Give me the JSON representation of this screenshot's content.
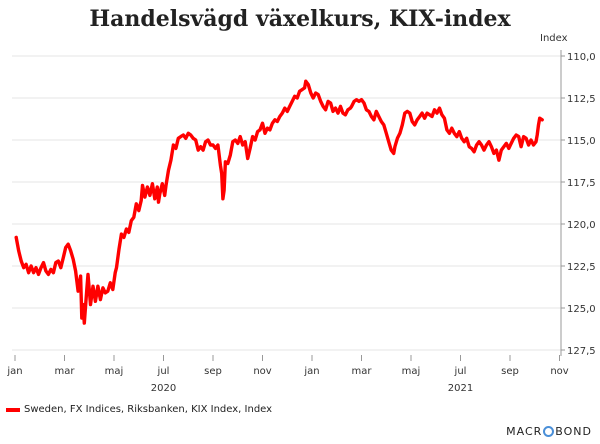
{
  "title": "Handelsvägd växelkurs, KIX-index",
  "legend": {
    "label": "Sweden, FX Indices, Riksbanken, KIX Index, Index",
    "color": "#ff0000"
  },
  "brand": {
    "prefix": "MACR",
    "suffix": "BOND",
    "mark_color": "#4a8fd8"
  },
  "chart_data": {
    "type": "line",
    "title": "Handelsvägd växelkurs, KIX-index",
    "ylabel": "Index",
    "ylim": [
      127.5,
      110.0
    ],
    "y_inverted": true,
    "y_ticks": [
      "110,0",
      "112,5",
      "115,0",
      "117,5",
      "120,0",
      "122,5",
      "125,0",
      "127,5"
    ],
    "y_tick_values": [
      110.0,
      112.5,
      115.0,
      117.5,
      120.0,
      122.5,
      125.0,
      127.5
    ],
    "x_range_months": [
      0,
      21.3
    ],
    "x_ticks": [
      {
        "label": "jan",
        "month": 0
      },
      {
        "label": "mar",
        "month": 2
      },
      {
        "label": "maj",
        "month": 4
      },
      {
        "label": "jul",
        "month": 6
      },
      {
        "label": "sep",
        "month": 8
      },
      {
        "label": "nov",
        "month": 10
      },
      {
        "label": "jan",
        "month": 12
      },
      {
        "label": "mar",
        "month": 14
      },
      {
        "label": "maj",
        "month": 16
      },
      {
        "label": "jul",
        "month": 18
      },
      {
        "label": "sep",
        "month": 20
      },
      {
        "label": "nov",
        "month": 22
      }
    ],
    "year_labels": [
      {
        "label": "2020",
        "month": 6
      },
      {
        "label": "2021",
        "month": 18
      }
    ],
    "series": [
      {
        "name": "Sweden, FX Indices, Riksbanken, KIX Index, Index",
        "color": "#ff0000",
        "points": [
          [
            0.05,
            120.8
          ],
          [
            0.15,
            121.6
          ],
          [
            0.25,
            122.2
          ],
          [
            0.35,
            122.6
          ],
          [
            0.45,
            122.4
          ],
          [
            0.55,
            122.9
          ],
          [
            0.65,
            122.5
          ],
          [
            0.75,
            122.9
          ],
          [
            0.85,
            122.6
          ],
          [
            0.95,
            123.0
          ],
          [
            1.05,
            122.6
          ],
          [
            1.15,
            122.3
          ],
          [
            1.25,
            122.8
          ],
          [
            1.35,
            123.0
          ],
          [
            1.45,
            122.7
          ],
          [
            1.55,
            122.9
          ],
          [
            1.65,
            122.3
          ],
          [
            1.75,
            122.2
          ],
          [
            1.85,
            122.6
          ],
          [
            1.95,
            122.0
          ],
          [
            2.05,
            121.4
          ],
          [
            2.15,
            121.2
          ],
          [
            2.25,
            121.6
          ],
          [
            2.35,
            122.1
          ],
          [
            2.45,
            122.8
          ],
          [
            2.55,
            124.0
          ],
          [
            2.65,
            123.1
          ],
          [
            2.7,
            125.6
          ],
          [
            2.75,
            124.8
          ],
          [
            2.8,
            125.9
          ],
          [
            2.9,
            123.9
          ],
          [
            2.95,
            123.0
          ],
          [
            3.05,
            124.8
          ],
          [
            3.15,
            123.7
          ],
          [
            3.25,
            124.6
          ],
          [
            3.35,
            123.7
          ],
          [
            3.45,
            124.5
          ],
          [
            3.55,
            123.8
          ],
          [
            3.65,
            124.1
          ],
          [
            3.75,
            124.0
          ],
          [
            3.85,
            123.5
          ],
          [
            3.95,
            123.9
          ],
          [
            4.05,
            122.9
          ],
          [
            4.1,
            122.6
          ],
          [
            4.2,
            121.5
          ],
          [
            4.3,
            120.6
          ],
          [
            4.4,
            120.8
          ],
          [
            4.5,
            120.3
          ],
          [
            4.6,
            120.5
          ],
          [
            4.7,
            119.8
          ],
          [
            4.8,
            119.6
          ],
          [
            4.9,
            118.8
          ],
          [
            5.0,
            119.2
          ],
          [
            5.1,
            118.6
          ],
          [
            5.15,
            117.7
          ],
          [
            5.25,
            118.4
          ],
          [
            5.35,
            117.8
          ],
          [
            5.45,
            118.3
          ],
          [
            5.55,
            117.6
          ],
          [
            5.65,
            118.5
          ],
          [
            5.75,
            117.8
          ],
          [
            5.8,
            118.7
          ],
          [
            5.85,
            118.2
          ],
          [
            5.95,
            117.6
          ],
          [
            6.05,
            118.3
          ],
          [
            6.1,
            117.7
          ],
          [
            6.2,
            116.8
          ],
          [
            6.3,
            116.2
          ],
          [
            6.4,
            115.3
          ],
          [
            6.5,
            115.5
          ],
          [
            6.6,
            114.9
          ],
          [
            6.7,
            114.8
          ],
          [
            6.8,
            114.7
          ],
          [
            6.9,
            114.9
          ],
          [
            7.0,
            114.6
          ],
          [
            7.1,
            114.7
          ],
          [
            7.2,
            114.9
          ],
          [
            7.3,
            115.0
          ],
          [
            7.4,
            115.6
          ],
          [
            7.5,
            115.4
          ],
          [
            7.6,
            115.6
          ],
          [
            7.7,
            115.1
          ],
          [
            7.8,
            115.0
          ],
          [
            7.9,
            115.3
          ],
          [
            8.0,
            115.3
          ],
          [
            8.1,
            115.5
          ],
          [
            8.2,
            115.3
          ],
          [
            8.3,
            116.5
          ],
          [
            8.35,
            117.0
          ],
          [
            8.4,
            118.5
          ],
          [
            8.45,
            118.0
          ],
          [
            8.5,
            116.3
          ],
          [
            8.6,
            116.4
          ],
          [
            8.7,
            115.9
          ],
          [
            8.8,
            115.1
          ],
          [
            8.9,
            115.0
          ],
          [
            9.0,
            115.2
          ],
          [
            9.1,
            114.8
          ],
          [
            9.2,
            115.3
          ],
          [
            9.3,
            115.1
          ],
          [
            9.4,
            116.1
          ],
          [
            9.5,
            115.5
          ],
          [
            9.6,
            114.8
          ],
          [
            9.7,
            115.0
          ],
          [
            9.8,
            114.5
          ],
          [
            9.9,
            114.4
          ],
          [
            10.0,
            114.0
          ],
          [
            10.1,
            114.6
          ],
          [
            10.2,
            114.3
          ],
          [
            10.3,
            114.4
          ],
          [
            10.4,
            114.0
          ],
          [
            10.5,
            113.8
          ],
          [
            10.6,
            113.9
          ],
          [
            10.7,
            113.6
          ],
          [
            10.8,
            113.4
          ],
          [
            10.9,
            113.1
          ],
          [
            11.0,
            113.3
          ],
          [
            11.1,
            113.0
          ],
          [
            11.2,
            112.7
          ],
          [
            11.3,
            112.4
          ],
          [
            11.4,
            112.5
          ],
          [
            11.5,
            112.1
          ],
          [
            11.6,
            112.0
          ],
          [
            11.7,
            111.9
          ],
          [
            11.75,
            111.5
          ],
          [
            11.85,
            111.7
          ],
          [
            11.95,
            112.2
          ],
          [
            12.05,
            112.5
          ],
          [
            12.15,
            112.2
          ],
          [
            12.25,
            112.3
          ],
          [
            12.35,
            112.7
          ],
          [
            12.45,
            113.0
          ],
          [
            12.55,
            113.2
          ],
          [
            12.65,
            112.7
          ],
          [
            12.75,
            112.8
          ],
          [
            12.85,
            113.3
          ],
          [
            12.95,
            113.1
          ],
          [
            13.05,
            113.4
          ],
          [
            13.15,
            113.0
          ],
          [
            13.25,
            113.4
          ],
          [
            13.35,
            113.5
          ],
          [
            13.45,
            113.2
          ],
          [
            13.55,
            113.1
          ],
          [
            13.6,
            113.0
          ],
          [
            13.7,
            112.7
          ],
          [
            13.8,
            112.6
          ],
          [
            13.9,
            112.7
          ],
          [
            14.0,
            112.6
          ],
          [
            14.1,
            112.8
          ],
          [
            14.2,
            113.2
          ],
          [
            14.3,
            113.3
          ],
          [
            14.4,
            113.6
          ],
          [
            14.5,
            113.8
          ],
          [
            14.6,
            113.3
          ],
          [
            14.7,
            113.6
          ],
          [
            14.8,
            113.9
          ],
          [
            14.9,
            114.1
          ],
          [
            15.0,
            114.6
          ],
          [
            15.1,
            115.1
          ],
          [
            15.2,
            115.6
          ],
          [
            15.3,
            115.8
          ],
          [
            15.35,
            115.4
          ],
          [
            15.45,
            114.9
          ],
          [
            15.55,
            114.6
          ],
          [
            15.65,
            114.1
          ],
          [
            15.75,
            113.4
          ],
          [
            15.85,
            113.3
          ],
          [
            15.95,
            113.4
          ],
          [
            16.05,
            113.9
          ],
          [
            16.15,
            114.1
          ],
          [
            16.25,
            113.8
          ],
          [
            16.35,
            113.6
          ],
          [
            16.45,
            113.4
          ],
          [
            16.55,
            113.7
          ],
          [
            16.65,
            113.4
          ],
          [
            16.75,
            113.5
          ],
          [
            16.85,
            113.6
          ],
          [
            16.95,
            113.2
          ],
          [
            17.05,
            113.4
          ],
          [
            17.15,
            113.1
          ],
          [
            17.25,
            113.5
          ],
          [
            17.35,
            113.7
          ],
          [
            17.45,
            114.4
          ],
          [
            17.55,
            114.6
          ],
          [
            17.65,
            114.3
          ],
          [
            17.75,
            114.6
          ],
          [
            17.85,
            114.8
          ],
          [
            17.95,
            114.5
          ],
          [
            18.05,
            114.9
          ],
          [
            18.15,
            115.1
          ],
          [
            18.25,
            114.9
          ],
          [
            18.35,
            115.4
          ],
          [
            18.45,
            115.5
          ],
          [
            18.55,
            115.7
          ],
          [
            18.65,
            115.3
          ],
          [
            18.75,
            115.1
          ],
          [
            18.85,
            115.3
          ],
          [
            18.95,
            115.6
          ],
          [
            19.05,
            115.3
          ],
          [
            19.15,
            115.1
          ],
          [
            19.25,
            115.4
          ],
          [
            19.35,
            115.8
          ],
          [
            19.45,
            115.6
          ],
          [
            19.55,
            116.2
          ],
          [
            19.65,
            115.6
          ],
          [
            19.75,
            115.4
          ],
          [
            19.85,
            115.2
          ],
          [
            19.95,
            115.5
          ],
          [
            20.05,
            115.2
          ],
          [
            20.15,
            114.9
          ],
          [
            20.25,
            114.7
          ],
          [
            20.35,
            114.8
          ],
          [
            20.45,
            115.4
          ],
          [
            20.55,
            114.8
          ],
          [
            20.65,
            114.9
          ],
          [
            20.75,
            115.3
          ],
          [
            20.85,
            115.0
          ],
          [
            20.95,
            115.3
          ],
          [
            21.05,
            115.1
          ],
          [
            21.1,
            114.7
          ],
          [
            21.15,
            114.1
          ],
          [
            21.2,
            113.7
          ],
          [
            21.3,
            113.8
          ]
        ]
      }
    ]
  }
}
